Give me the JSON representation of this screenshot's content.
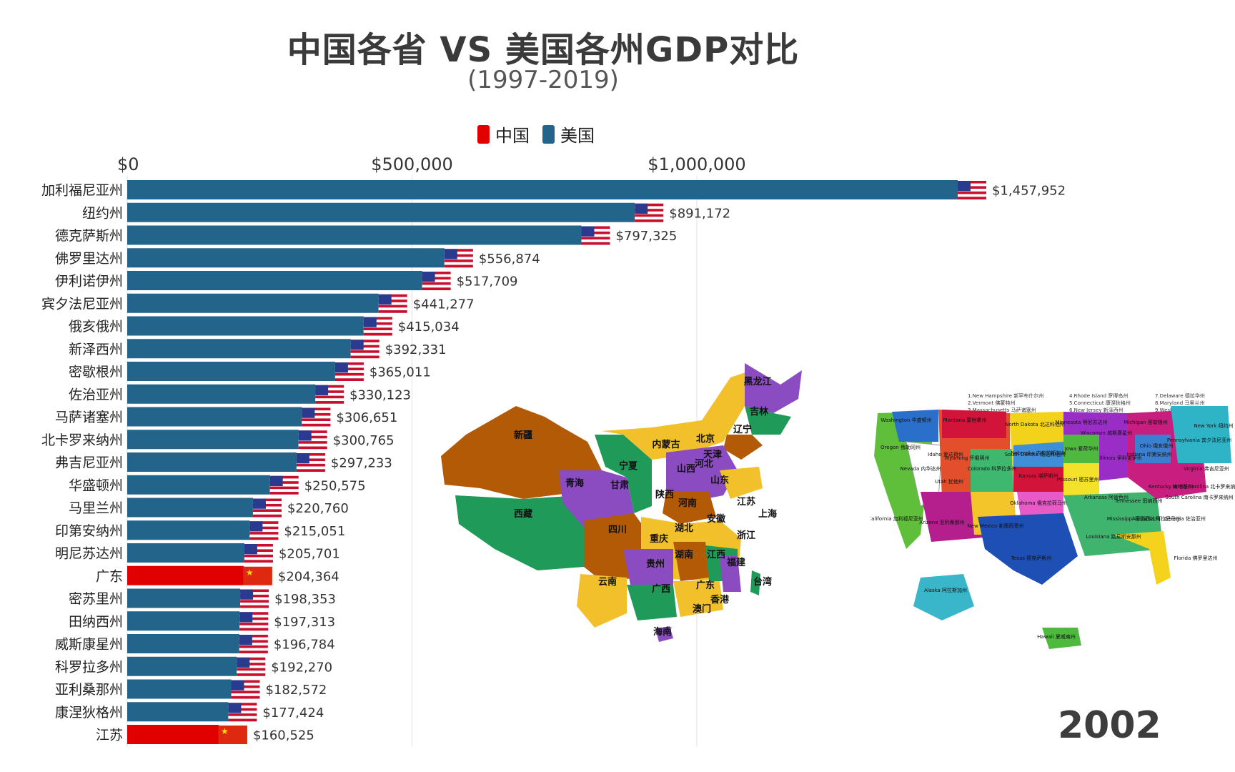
{
  "title": "中国各省 VS 美国各州GDP对比",
  "subtitle": "(1997-2019)",
  "legend": [
    {
      "label": "中国",
      "color": "#e00000"
    },
    {
      "label": "美国",
      "color": "#22648a"
    }
  ],
  "year": "2002",
  "colors": {
    "china": "#e00000",
    "usa": "#22648a",
    "grid": "#e2e2e2"
  },
  "chart_data": {
    "type": "bar",
    "orientation": "horizontal",
    "title": "中国各省 VS 美国各州GDP对比",
    "subtitle": "(1997-2019)",
    "xlim": [
      0,
      1500000
    ],
    "xticks": [
      0,
      500000,
      1000000
    ],
    "xtick_labels": [
      "$0",
      "$500,000",
      "$1,000,000"
    ],
    "grid": true,
    "legend_position": "top",
    "categories": [
      "加利福尼亚州",
      "纽约州",
      "德克萨斯州",
      "佛罗里达州",
      "伊利诺伊州",
      "宾夕法尼亚州",
      "俄亥俄州",
      "新泽西州",
      "密歇根州",
      "佐治亚州",
      "马萨诸塞州",
      "北卡罗来纳州",
      "弗吉尼亚州",
      "华盛顿州",
      "马里兰州",
      "印第安纳州",
      "明尼苏达州",
      "广东",
      "密苏里州",
      "田纳西州",
      "威斯康星州",
      "科罗拉多州",
      "亚利桑那州",
      "康涅狄格州",
      "江苏"
    ],
    "values": [
      1457952,
      891172,
      797325,
      556874,
      517709,
      441277,
      415034,
      392331,
      365011,
      330123,
      306651,
      300765,
      297233,
      250575,
      220760,
      215051,
      205701,
      204364,
      198353,
      197313,
      196784,
      192270,
      182572,
      177424,
      160525
    ],
    "value_labels": [
      "$1,457,952",
      "$891,172",
      "$797,325",
      "$556,874",
      "$517,709",
      "$441,277",
      "$415,034",
      "$392,331",
      "$365,011",
      "$330,123",
      "$306,651",
      "$300,765",
      "$297,233",
      "$250,575",
      "$220,760",
      "$215,051",
      "$205,701",
      "$204,364",
      "$198,353",
      "$197,313",
      "$196,784",
      "$192,270",
      "$182,572",
      "$177,424",
      "$160,525"
    ],
    "groups": [
      "美国",
      "美国",
      "美国",
      "美国",
      "美国",
      "美国",
      "美国",
      "美国",
      "美国",
      "美国",
      "美国",
      "美国",
      "美国",
      "美国",
      "美国",
      "美国",
      "美国",
      "中国",
      "美国",
      "美国",
      "美国",
      "美国",
      "美国",
      "美国",
      "中国"
    ]
  },
  "china_map": {
    "labels": [
      "新疆",
      "西藏",
      "青海",
      "甘肃",
      "宁夏",
      "内蒙古",
      "黑龙江",
      "吉林",
      "辽宁",
      "北京",
      "天津",
      "河北",
      "山西",
      "山东",
      "陕西",
      "河南",
      "江苏",
      "上海",
      "安徽",
      "湖北",
      "四川",
      "重庆",
      "湖南",
      "江西",
      "浙江",
      "贵州",
      "云南",
      "广西",
      "广东",
      "福建",
      "台湾",
      "香港",
      "澳门",
      "海南"
    ]
  },
  "usa_map": {
    "notes": [
      "1.New Hampshire 新罕布什尔州",
      "2.Vermont 佛蒙特州",
      "3.Massachusetts 马萨诸塞州",
      "4.Rhode Island 罗得岛州",
      "5.Connecticut 康涅狄格州",
      "6.New Jersey 新泽西州",
      "7.Delaware 德拉华州",
      "8.Maryland 马里兰州",
      "9.West Virginia 西弗吉尼亚州"
    ],
    "labels": [
      "Washington 华盛顿州",
      "Oregon 俄勒冈州",
      "California 加利福尼亚州",
      "Nevada 内华达州",
      "Idaho 爱达荷州",
      "Montana 蒙他拿州",
      "Wyoming 怀俄明州",
      "Utah 犹他州",
      "Arizona 亚利桑那州",
      "Colorado 科罗拉多州",
      "New Mexico 新墨西哥州",
      "North Dakota 北达科他州",
      "South Dakota 南达科他州",
      "Nebraska 内布拉斯加州",
      "Kansas 堪萨斯州",
      "Oklahoma 俄克拉荷马州",
      "Texas 德克萨斯州",
      "Minnesota 明尼苏达州",
      "Iowa 爱荷华州",
      "Missouri 密苏里州",
      "Arkansas 阿肯色州",
      "Louisiana 路易斯安那州",
      "Wisconsin 威斯康星州",
      "Michigan 密歇根州",
      "Illinois 伊利诺伊州",
      "Indiana 印第安纳州",
      "Ohio 俄亥俄州",
      "Kentucky 肯塔基州",
      "Tennessee 田纳西州",
      "Mississippi 密西西比州",
      "Alabama 阿拉巴马州",
      "Georgia 佐治亚州",
      "Florida 佛罗里达州",
      "South Carolina 南卡罗来纳州",
      "North Carolina 北卡罗来纳州",
      "Virginia 弗吉尼亚州",
      "Pennsylvania 宾夕法尼亚州",
      "New York 纽约州",
      "Alaska 阿拉斯加州",
      "Hawaii 夏威夷州"
    ]
  }
}
